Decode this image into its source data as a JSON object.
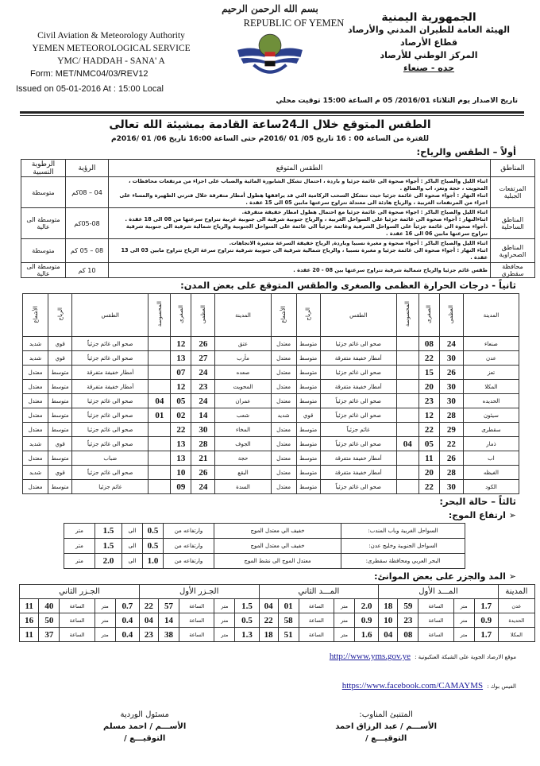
{
  "header": {
    "en": {
      "line1": "REPUBLIC OF YEMEN",
      "line2": "Civil Aviation & Meteorology Authority",
      "line3": "YEMEN METEOROLOGICAL SERVICE",
      "line4": "YMC/ HADDAH - SANA' A",
      "form": "Form: MET/NMC04/03/REV12",
      "issued": "Issued on  05-01-2016  At : 15:00  Local"
    },
    "ar": {
      "line1": "الجمهورية اليمنية",
      "line2": "الهيئة العامة للطيران المدني والأرصاد",
      "line3": "قطاع الأرصاد",
      "line4": "المركز الوطني للأرصاد",
      "line5": "حده - صنعاء",
      "issued": "تاريخ الاصدار يوم الثلاثاء 2016/01/ 05 م الساعة 15:00 توقيت محلي"
    },
    "basmala": "بسم الله الرحمن الرحيم",
    "logo_text": "CIVIL AVIATION & METEOROLOGY"
  },
  "title": "الطقس المتوقع خلال الـ24ساعة القادمة بمشيئة الله تعالى",
  "period": "للفترة من الساعة 00 : 16 تاريخ 05/ 01 /2016م حتى الساعة 16:00 تاريخ 06/ 01 /2016م",
  "section1": {
    "heading": "أولاً – الطقس والرياح:",
    "columns": [
      "المناطق",
      "الطقس المتوقع",
      "الرؤية",
      "الرطوبة النسبية"
    ],
    "rows": [
      {
        "region": "المرتفعات الجبلية",
        "forecast": [
          "اثناء الليل والصباح الباكر : أجواء صحوة الى غائمة جزئيا و باردة ، احتمال تشكل الشابورة المائية والضباب على اجزاء من مرتفعات محافظات ، المحويت ، حجة وتعز، اب والضالع .",
          "اثناء النهار : أجواء صحوة الى غائمة جزئيا حيث تتشكل السحب الركامية التي قد يرافقها هطول أمطار متفرقة خلال فترتي الظهيرة والمساء على اجزاء من المرتفعات الغربية ، والرياح هادئة الى معتدلة تتراوح سرعتها مابين 05 الى 15 عقدة ."
        ],
        "visibility": "04 – 08كم",
        "humidity": "متوسطة"
      },
      {
        "region": "المناطق الساحلية",
        "forecast": [
          "اثناء الليل والصباح الباكر : اجواء صحوة الى غائمة جزئيا مع احتمال هطول امطار خفيفة متفرقة.",
          "اثناءالنهار : أجواء صحوة الى غائمة جزئيا على السواحل الغربية ، والرياح جنوبية شرقية الى جنوبية غربية تتراوح سرعتها من 08 الى 18 عقدة .",
          ".أجواء صحوة الى غائمة جزئياً على السواحل الشرقية وغائمة جزئياً الى غائمة على السواحل الجنوبية والرياح شمالية شرقية الى جنوبية شرقية تتراوح سرعتها مابين 06 الى 16 عقدة ."
        ],
        "visibility": "05-08كم",
        "humidity": "متوسطة الى عالية"
      },
      {
        "region": "المناطق الصحراوية",
        "forecast": [
          "اثناء الليل والصباح الباكر : أجواء صحوة و مغبرة نسبيا وباردة, الرياح خفيفة السرعة متغيرة الاتجاهات.",
          "اثناء النهار : أجواء صحوة الى غائمة جزئيا و مغبرة نسبيا ، والرياح شمالية شرقية الى جنوبية شرقية تتراوح سرعة الرياح تتراوح مابين 03 الى 13 عقدة ."
        ],
        "visibility": "08 – 05 كم",
        "humidity": "متوسطة"
      },
      {
        "region": "محافظة سقطرى",
        "forecast": [
          "طقس غائم جزئيا والرياح شمالية شرقية تتراوح سرعتها بين 08 - 20 عقدة ."
        ],
        "visibility": "10 كم",
        "humidity": "متوسطة الى عالية"
      }
    ]
  },
  "section2": {
    "heading": "ثانياً - درجات الحرارة العظمى والصغرى والطقس المتوقع على بعض المدن:",
    "columns": [
      "المدينة",
      "العظمى",
      "الصغرى",
      "المحسوسة",
      "الطقس",
      "الرياح",
      "الأشعاع"
    ],
    "rows": [
      [
        [
          "صنعاء",
          "24",
          "08",
          "",
          "صحو الى غائم جزئيا",
          "متوسط",
          "معتدل"
        ],
        [
          "عتق",
          "26",
          "12",
          "",
          "صحو الى غائم جزئياً",
          "قوي",
          "شديد"
        ]
      ],
      [
        [
          "عدن",
          "30",
          "22",
          "",
          "أمطار خفيفة متفرقة",
          "متوسط",
          "معتدل"
        ],
        [
          "مأرب",
          "27",
          "13",
          "",
          "صحو الى غائم جزئياً",
          "قوي",
          "شديد"
        ]
      ],
      [
        [
          "تعز",
          "26",
          "15",
          "",
          "صحو الى غائم جزئيا",
          "متوسط",
          "معتدل"
        ],
        [
          "صعده",
          "24",
          "07",
          "",
          "أمطار خفيفة متفرقة",
          "متوسط",
          "معتدل"
        ]
      ],
      [
        [
          "المكلا",
          "30",
          "20",
          "",
          "أمطار خفيفة متفرقة",
          "متوسط",
          "معتدل"
        ],
        [
          "المحويت",
          "23",
          "12",
          "",
          "أمطار خفيفة متفرقة",
          "متوسط",
          "معتدل"
        ]
      ],
      [
        [
          "الحديده",
          "30",
          "23",
          "",
          "صحو الى غائم جزئياً",
          "متوسط",
          "معتدل"
        ],
        [
          "عمران",
          "24",
          "05",
          "04",
          "صحو الى غائم جزئيا",
          "متوسط",
          "معتدل"
        ]
      ],
      [
        [
          "سيئون",
          "28",
          "12",
          "",
          "صحو الى غائم جزئياً",
          "قوي",
          "شديد"
        ],
        [
          "شعب",
          "14",
          "02",
          "01",
          "صحو الى غائم جزئياً",
          "متوسط",
          "معتدل"
        ]
      ],
      [
        [
          "سقطرى",
          "29",
          "22",
          "",
          "غائم جزئياً",
          "متوسط",
          "معتدل"
        ],
        [
          "المخاء",
          "30",
          "22",
          "",
          "صحو الى غائم جزئيا",
          "متوسط",
          "معتدل"
        ]
      ],
      [
        [
          "ذمار",
          "22",
          "05",
          "04",
          "صحو الى غائم جزئياً",
          "متوسط",
          "معتدل"
        ],
        [
          "الجوف",
          "28",
          "13",
          "",
          "صحو الى غائم جزئياً",
          "قوي",
          "شديد"
        ]
      ],
      [
        [
          "اب",
          "26",
          "11",
          "",
          "أمطار خفيفة متفرقة",
          "متوسط",
          "معتدل"
        ],
        [
          "حجة",
          "21",
          "13",
          "",
          "ضباب",
          "متوسط",
          "معتدل"
        ]
      ],
      [
        [
          "الغيظه",
          "28",
          "20",
          "",
          "أمطار خفيفة متفرقة",
          "متوسط",
          "معتدل"
        ],
        [
          "البقع",
          "26",
          "10",
          "",
          "صحو الى غائم جزئياً",
          "قوي",
          "شديد"
        ]
      ],
      [
        [
          "الكود",
          "30",
          "22",
          "",
          "صحو الى غائم جزئياً",
          "متوسط",
          "معتدل"
        ],
        [
          "السدة",
          "24",
          "09",
          "",
          "غائم جزئيا",
          "متوسط",
          "معتدل"
        ]
      ]
    ]
  },
  "section3": {
    "heading": "ثالثاً – حالة البحر:",
    "waves_heading": "ارتفاع الموج:",
    "waves": [
      [
        "السواحل الغربية وباب المندب:",
        "خفيف الي معتدل الموج",
        "وارتفاعه من",
        "0.5",
        "الى",
        "1.5",
        "متر"
      ],
      [
        "السواحل الجنوبية وخليج عدن:",
        "خفيف الي معتدل الموج",
        "وارتفاعه من",
        "0.5",
        "الى",
        "1.5",
        "متر"
      ],
      [
        "البحر العربي ومحافظة سقطرى:",
        "معتدل الموج الى نشط الموج",
        "وارتفاعه من",
        "1.0",
        "الى",
        "2.0",
        "متر"
      ]
    ],
    "tides_heading": "المد والجزر على بعض الموانئ:",
    "tide_columns": [
      "المدينة",
      "المـــد الأول",
      "المـــد الثاني",
      "الجـزر الأول",
      "الجـزر الثاني"
    ],
    "unit": "متر",
    "hour_label": "الساعة",
    "tides": [
      {
        "city": "عدن",
        "values": [
          [
            "1.7",
            "59",
            "18"
          ],
          [
            "2.0",
            "01",
            "04"
          ],
          [
            "1.5",
            "57",
            "22"
          ],
          [
            "0.7",
            "40",
            "11"
          ]
        ]
      },
      {
        "city": "الحديدة",
        "values": [
          [
            "0.9",
            "23",
            "10"
          ],
          [
            "0.9",
            "58",
            "22"
          ],
          [
            "0.5",
            "14",
            "04"
          ],
          [
            "0.4",
            "50",
            "16"
          ]
        ]
      },
      {
        "city": "المكلا",
        "values": [
          [
            "1.7",
            "08",
            "04"
          ],
          [
            "1.6",
            "51",
            "18"
          ],
          [
            "1.3",
            "38",
            "23"
          ],
          [
            "0.4",
            "37",
            "11"
          ]
        ]
      }
    ]
  },
  "footer": {
    "website_label": "موقع الارصاد الجوية على الشبكة العنكبوتية :",
    "website": "http://www.yms.gov.ye",
    "facebook_label": "الفيس بوك :",
    "facebook": "https://www.facebook.com/CAMAYMS",
    "forecaster": {
      "title": "المتنبئ المناوب:",
      "name": "الأســـم /   عبد الرزاق احمد",
      "signature": "التوقيـــع /"
    },
    "shift": {
      "title": "مسئول الوردية",
      "name": "الأســـم / احمد مسلم",
      "signature": "التوقيـــع /"
    }
  }
}
